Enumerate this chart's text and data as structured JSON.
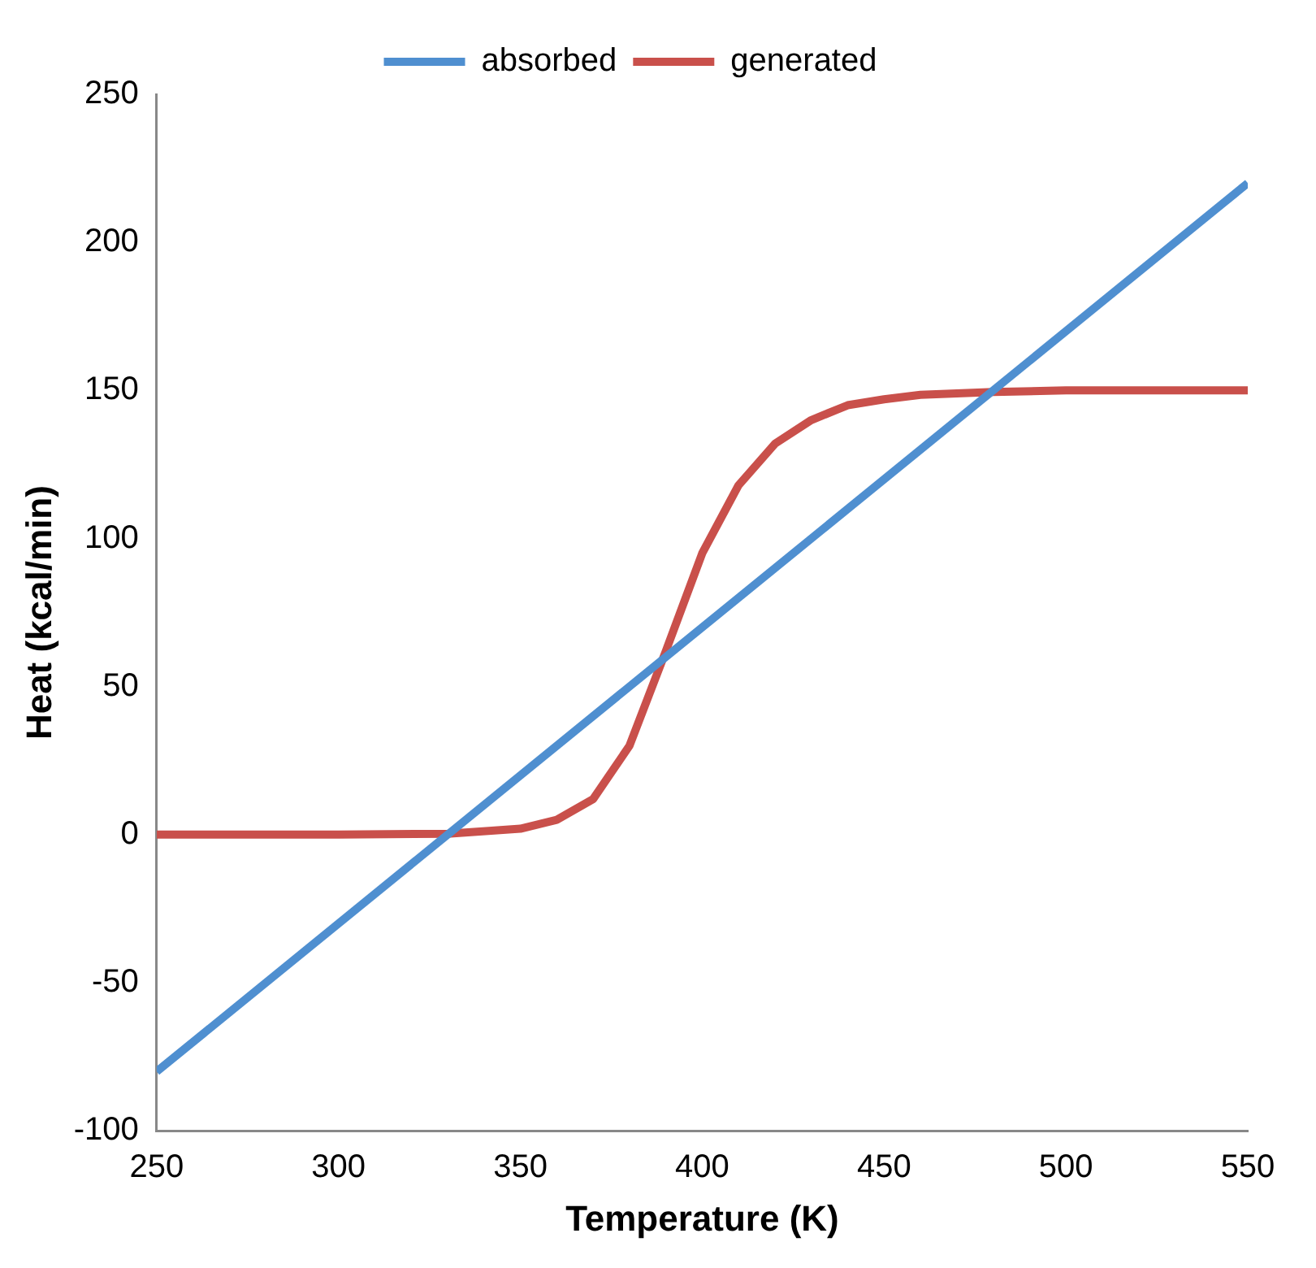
{
  "chart_data": {
    "type": "line",
    "xlabel": "Temperature (K)",
    "ylabel": "Heat (kcal/min)",
    "xlim": [
      250,
      550
    ],
    "xticks": [
      250,
      300,
      350,
      400,
      450,
      500,
      550
    ],
    "ylim": [
      -100,
      250
    ],
    "yticks": [
      -100,
      -50,
      0,
      50,
      100,
      150,
      200,
      250
    ],
    "legend": "top",
    "marker": "none",
    "line_style": "solid",
    "series": [
      {
        "name": "absorbed",
        "color": "#4f8fd0",
        "x": [
          250,
          550
        ],
        "values": [
          -80,
          220
        ]
      },
      {
        "name": "generated",
        "color": "#c9504b",
        "x": [
          250,
          300,
          330,
          350,
          360,
          370,
          380,
          390,
          400,
          410,
          420,
          430,
          440,
          450,
          460,
          480,
          500,
          550
        ],
        "values": [
          0,
          0,
          0.3,
          2,
          5,
          12,
          30,
          62,
          95,
          118,
          132,
          140,
          145,
          147,
          148.5,
          149.5,
          150,
          150
        ]
      }
    ]
  }
}
